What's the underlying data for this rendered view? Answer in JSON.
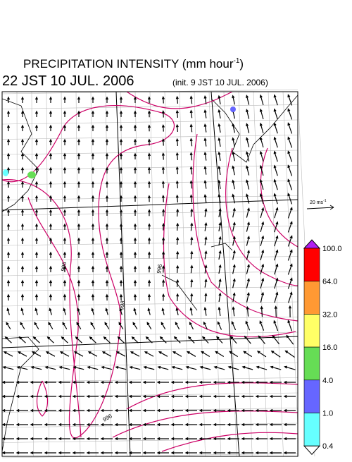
{
  "title": {
    "text": "PRECIPITATION INTENSITY (mm hour",
    "sup": "-1",
    "close": ")"
  },
  "valid_time": "22 JST 10 JUL. 2006",
  "init_time": "(init. 9 JST 10 JUL. 2006)",
  "vector_scale": {
    "text": "20 ms",
    "sup": "-1"
  },
  "contour_labels": [
    "996",
    "996",
    "998",
    "996"
  ],
  "colorbar": {
    "labels": [
      "100.0",
      "64.0",
      "32.0",
      "16.0",
      "4.0",
      "1.0",
      "0.4"
    ],
    "colors": [
      "#ff0000",
      "#ff9933",
      "#ffff66",
      "#66dd55",
      "#6666ff",
      "#66ffff"
    ],
    "over_color": "#b020f0",
    "under_color": "#ffffff"
  }
}
